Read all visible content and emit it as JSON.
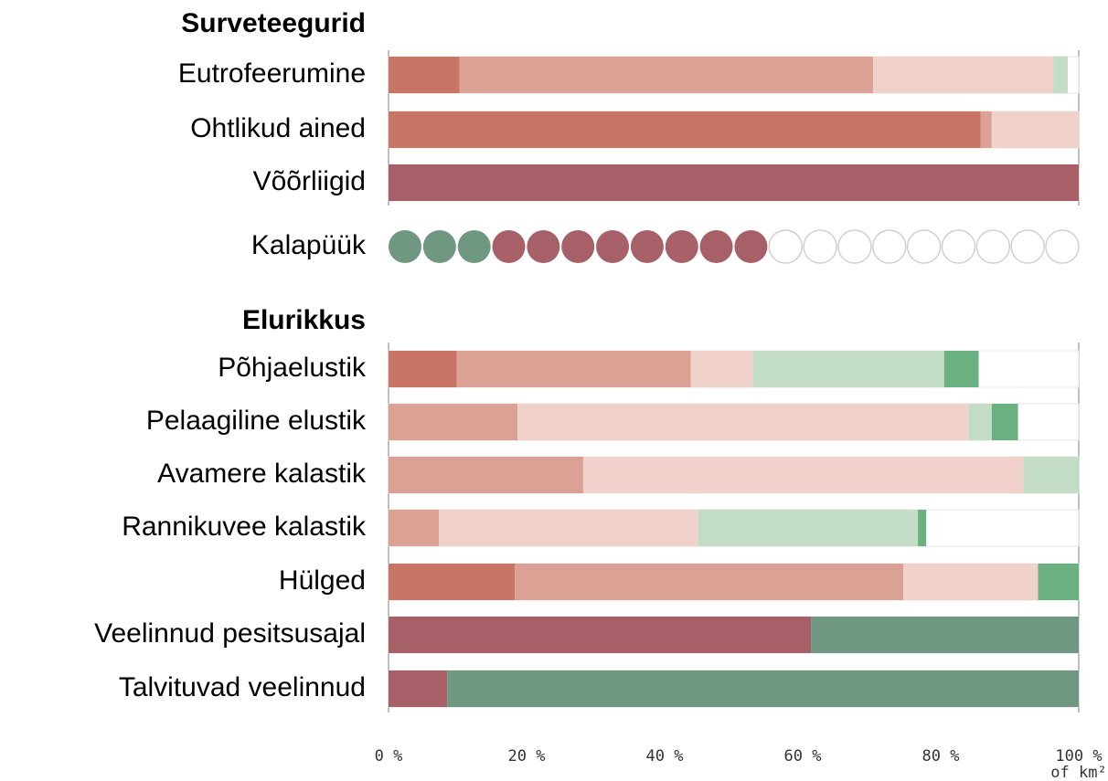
{
  "chart_data": {
    "type": "stacked_bar",
    "group_titles": [
      "Surveteegurid",
      "Elurikkus"
    ],
    "categories": [
      "Eutrofeerumine",
      "Ohtlikud ained",
      "Võõrliigid",
      "Põhjaelustik",
      "Pelaagiline elustik",
      "Avamere kalastik",
      "Rannikuvee kalastik",
      "Hülged",
      "Veelinnud pesitsusajal",
      "Talvituvad veelinnud"
    ],
    "series": [
      {
        "color": "#c87566",
        "values": [
          10.3,
          85.8,
          null,
          9.9,
          null,
          null,
          null,
          18.3,
          null,
          null
        ]
      },
      {
        "color": "#dba195",
        "values": [
          59.9,
          1.6,
          null,
          33.9,
          18.7,
          28.2,
          7.3,
          56.3,
          null,
          null
        ]
      },
      {
        "color": "#f0d2ca",
        "values": [
          26.1,
          12.6,
          null,
          9.0,
          65.3,
          63.8,
          37.5,
          19.5,
          null,
          null
        ]
      },
      {
        "color": "#c2dcc5",
        "values": [
          2.1,
          null,
          null,
          27.7,
          3.4,
          8.0,
          31.9,
          null,
          null,
          null
        ]
      },
      {
        "color": "#6bb080",
        "values": [
          null,
          null,
          null,
          5.0,
          3.8,
          null,
          1.2,
          5.9,
          null,
          null
        ]
      },
      {
        "color": "#a86068",
        "values": [
          null,
          null,
          100,
          null,
          null,
          null,
          null,
          null,
          61.2,
          8.5
        ]
      },
      {
        "color": "#6f9782",
        "values": [
          null,
          null,
          null,
          null,
          null,
          null,
          null,
          null,
          38.8,
          91.5
        ]
      }
    ],
    "dot_row": {
      "label": "Kalapüük",
      "green": 3,
      "red": 8,
      "total": 20,
      "green_color": "#6f9782",
      "red_color": "#a86068"
    },
    "xlim": [
      0,
      100
    ],
    "xticks": [
      {
        "value": 0,
        "label": "0 %"
      },
      {
        "value": 20,
        "label": "20 %"
      },
      {
        "value": 40,
        "label": "40 %"
      },
      {
        "value": 60,
        "label": "60 %"
      },
      {
        "value": 80,
        "label": "80 %"
      },
      {
        "value": 100,
        "label": "100 %"
      }
    ],
    "x_unit": "of km²"
  }
}
